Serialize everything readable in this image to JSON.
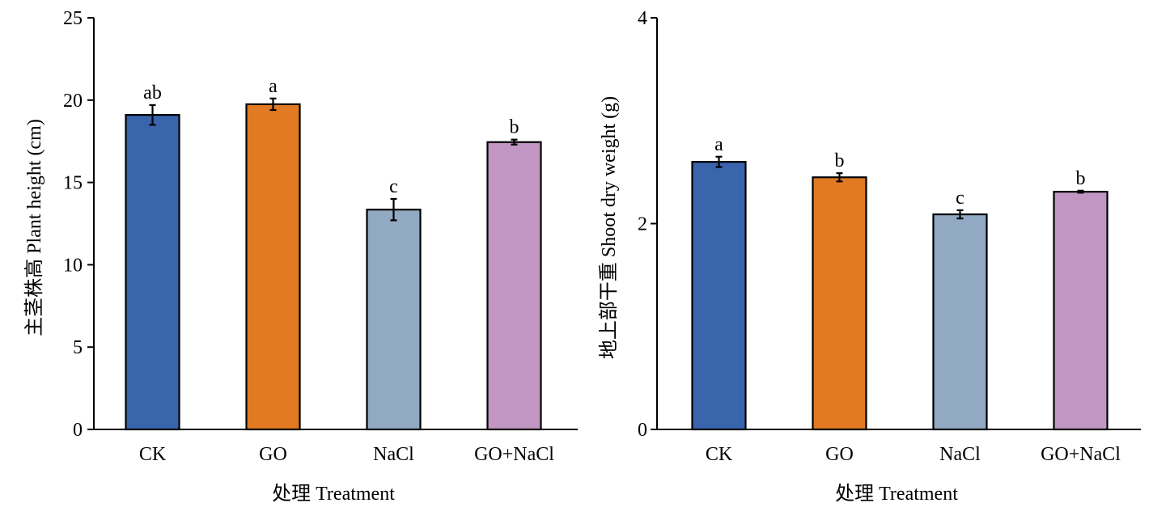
{
  "chart_data": [
    {
      "type": "bar",
      "categories": [
        "CK",
        "GO",
        "NaCl",
        "GO+NaCl"
      ],
      "values": [
        19.1,
        19.75,
        13.35,
        17.45
      ],
      "errors": [
        0.6,
        0.35,
        0.65,
        0.15
      ],
      "significance": [
        "ab",
        "a",
        "c",
        "b"
      ],
      "colors": [
        "#3A64AC",
        "#E17A22",
        "#91A9C2",
        "#C196C2"
      ],
      "xlabel": "处理 Treatment",
      "ylabel": "主茎株高 Plant height (cm)",
      "ylim": [
        0,
        25
      ],
      "yticks": [
        0,
        5,
        10,
        15,
        20,
        25
      ],
      "grid": false
    },
    {
      "type": "bar",
      "categories": [
        "CK",
        "GO",
        "NaCl",
        "GO+NaCl"
      ],
      "values": [
        2.6,
        2.45,
        2.09,
        2.31
      ],
      "errors": [
        0.05,
        0.04,
        0.04,
        0.01
      ],
      "significance": [
        "a",
        "b",
        "c",
        "b"
      ],
      "colors": [
        "#3A64AC",
        "#E17A22",
        "#91A9C2",
        "#C196C2"
      ],
      "xlabel": "处理 Treatment",
      "ylabel": "地上部干重 Shoot dry weight (g)",
      "ylim": [
        0,
        4
      ],
      "yticks": [
        0,
        2,
        4
      ],
      "grid": false
    }
  ]
}
